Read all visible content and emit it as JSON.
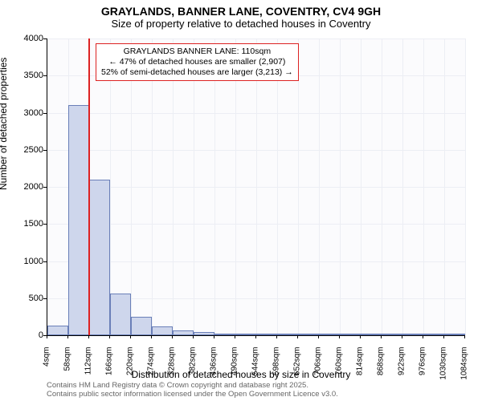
{
  "title_main": "GRAYLANDS, BANNER LANE, COVENTRY, CV4 9GH",
  "title_sub": "Size of property relative to detached houses in Coventry",
  "y_axis_label": "Number of detached properties",
  "x_axis_label": "Distribution of detached houses by size in Coventry",
  "chart": {
    "type": "histogram",
    "background_color": "#fbfbfd",
    "grid_color": "#eceef4",
    "bar_fill": "#ced6ec",
    "bar_border": "#6a7fb8",
    "marker_color": "#dd2222",
    "ylim": [
      0,
      4000
    ],
    "ytick_step": 500,
    "yticks": [
      0,
      500,
      1000,
      1500,
      2000,
      2500,
      3000,
      3500,
      4000
    ],
    "xtick_labels": [
      "4sqm",
      "58sqm",
      "112sqm",
      "166sqm",
      "220sqm",
      "274sqm",
      "328sqm",
      "382sqm",
      "436sqm",
      "490sqm",
      "544sqm",
      "598sqm",
      "652sqm",
      "706sqm",
      "760sqm",
      "814sqm",
      "868sqm",
      "922sqm",
      "976sqm",
      "1030sqm",
      "1084sqm"
    ],
    "xtick_step": 54,
    "x_min": 4,
    "x_max": 1084,
    "bars": [
      {
        "x_start": 4,
        "x_end": 58,
        "value": 130
      },
      {
        "x_start": 58,
        "x_end": 112,
        "value": 3100
      },
      {
        "x_start": 112,
        "x_end": 166,
        "value": 2100
      },
      {
        "x_start": 166,
        "x_end": 220,
        "value": 560
      },
      {
        "x_start": 220,
        "x_end": 274,
        "value": 250
      },
      {
        "x_start": 274,
        "x_end": 328,
        "value": 120
      },
      {
        "x_start": 328,
        "x_end": 382,
        "value": 60
      },
      {
        "x_start": 382,
        "x_end": 436,
        "value": 40
      },
      {
        "x_start": 436,
        "x_end": 490,
        "value": 25
      },
      {
        "x_start": 490,
        "x_end": 544,
        "value": 15
      },
      {
        "x_start": 544,
        "x_end": 598,
        "value": 8
      },
      {
        "x_start": 598,
        "x_end": 652,
        "value": 5
      },
      {
        "x_start": 652,
        "x_end": 706,
        "value": 4
      },
      {
        "x_start": 706,
        "x_end": 760,
        "value": 3
      },
      {
        "x_start": 760,
        "x_end": 814,
        "value": 2
      },
      {
        "x_start": 814,
        "x_end": 868,
        "value": 2
      },
      {
        "x_start": 868,
        "x_end": 922,
        "value": 1
      },
      {
        "x_start": 922,
        "x_end": 976,
        "value": 1
      },
      {
        "x_start": 976,
        "x_end": 1030,
        "value": 1
      },
      {
        "x_start": 1030,
        "x_end": 1084,
        "value": 1
      }
    ],
    "marker_at": 110
  },
  "info_box": {
    "line1": "GRAYLANDS BANNER LANE: 110sqm",
    "line2": "← 47% of detached houses are smaller (2,907)",
    "line3": "52% of semi-detached houses are larger (3,213) →"
  },
  "footer": {
    "line1": "Contains HM Land Registry data © Crown copyright and database right 2025.",
    "line2": "Contains public sector information licensed under the Open Government Licence v3.0."
  }
}
